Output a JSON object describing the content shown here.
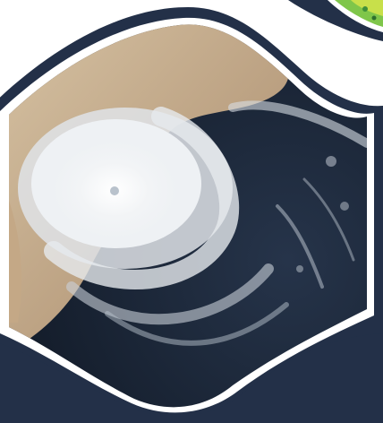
{
  "colors": {
    "navy": "#233048",
    "white": "#ffffff",
    "land": "#b89a79",
    "land_light": "#d3bd9d",
    "ocean_deep": "#1a2535",
    "ocean": "#2b3a4f",
    "cloud": "#f4f6f8",
    "map_green": "#7fc64a",
    "map_yellow": "#c8e04a"
  },
  "images": {
    "main_photo": "satellite-cyclone-image",
    "corner_thumbnail": "vegetation-map-thumbnail"
  }
}
